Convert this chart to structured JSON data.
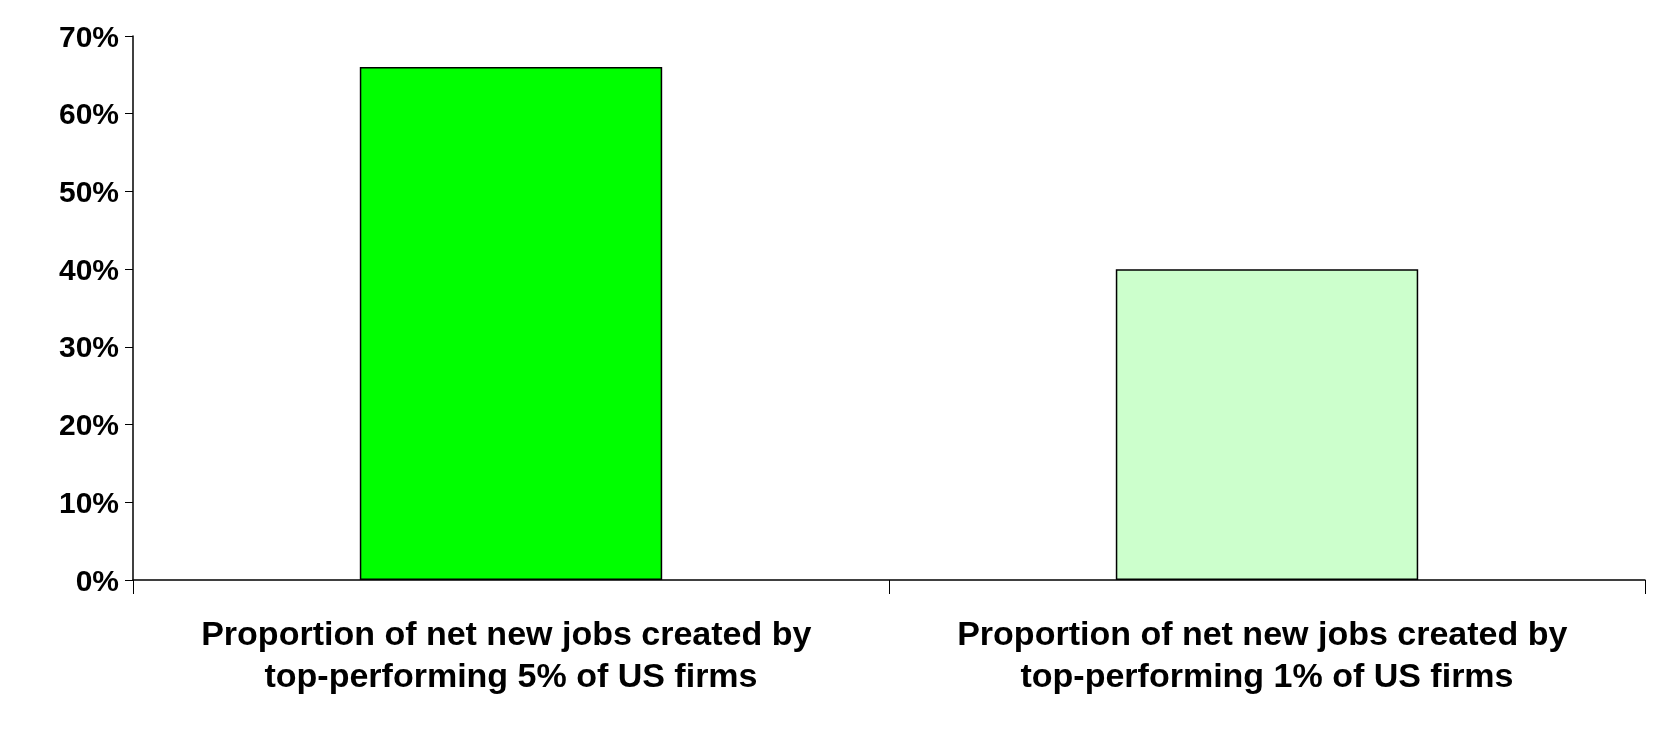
{
  "chart_data": {
    "type": "bar",
    "categories": [
      "Proportion of net new jobs created by top-performing 5% of US firms",
      "Proportion of net new jobs created by top-performing 1% of US firms"
    ],
    "values": [
      66,
      40
    ],
    "colors": [
      "#00ff00",
      "#ccffcc"
    ],
    "ylim": [
      0,
      70
    ],
    "yticks": [
      {
        "value": 0,
        "label": "0%"
      },
      {
        "value": 10,
        "label": "10%"
      },
      {
        "value": 20,
        "label": "20%"
      },
      {
        "value": 30,
        "label": "30%"
      },
      {
        "value": 40,
        "label": "40%"
      },
      {
        "value": 50,
        "label": "50%"
      },
      {
        "value": 60,
        "label": "60%"
      },
      {
        "value": 70,
        "label": "70%"
      }
    ],
    "grid": false
  }
}
